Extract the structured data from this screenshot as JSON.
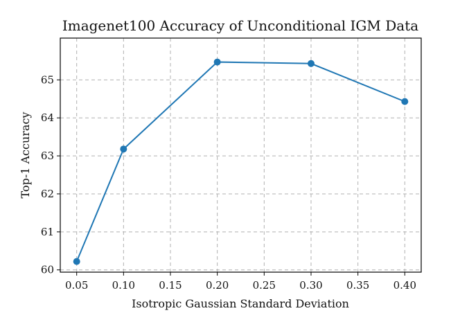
{
  "chart_data": {
    "type": "line",
    "title": "Imagenet100 Accuracy of Unconditional IGM Data",
    "xlabel": "Isotropic Gaussian Standard Deviation",
    "ylabel": "Top-1 Accuracy",
    "xlim": [
      0.0325,
      0.4175
    ],
    "ylim": [
      59.94,
      66.1
    ],
    "xticks": [
      "0.05",
      "0.10",
      "0.15",
      "0.20",
      "0.25",
      "0.30",
      "0.35",
      "0.40"
    ],
    "yticks": [
      "60",
      "61",
      "62",
      "63",
      "64",
      "65"
    ],
    "grid": true,
    "series": [
      {
        "color": "#1f77b4",
        "marker": "circle",
        "x": [
          0.05,
          0.1,
          0.2,
          0.3,
          0.4
        ],
        "y": [
          60.22,
          63.18,
          65.47,
          65.43,
          64.43
        ]
      }
    ]
  }
}
